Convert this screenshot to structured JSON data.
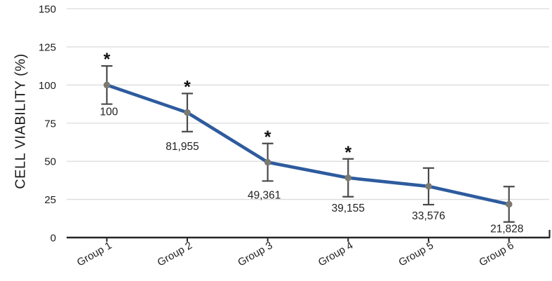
{
  "chart_data": {
    "type": "line",
    "title": "",
    "xlabel": "",
    "ylabel": "CELL VIABILITY (%)",
    "categories": [
      "Group 1",
      "Group 2",
      "Group 3",
      "Group 4",
      "Group 5",
      "Group 6"
    ],
    "series": [
      {
        "values": [
          100,
          81.955,
          49.361,
          39.155,
          33.576,
          21.828
        ],
        "point_labels": [
          "100",
          "81,955",
          "49,361",
          "39,155",
          "33,576",
          "21,828"
        ],
        "error": [
          12.5,
          12.5,
          12.3,
          12.4,
          12.0,
          11.6
        ],
        "significance": [
          "*",
          "*",
          "*",
          "*",
          "",
          ""
        ]
      }
    ],
    "ylim": [
      0,
      150
    ],
    "yticks": [
      0,
      25,
      50,
      75,
      100,
      125,
      150
    ],
    "grid": "horizontal",
    "legend": "none",
    "markers": "circle",
    "colors": {
      "line": "#2e5b9e",
      "marker": "#7a7a73",
      "error_bar": "#4a4a4a",
      "gridline": "#dcdcdc",
      "axis": "#262626",
      "text": "#1f1f1f"
    }
  }
}
